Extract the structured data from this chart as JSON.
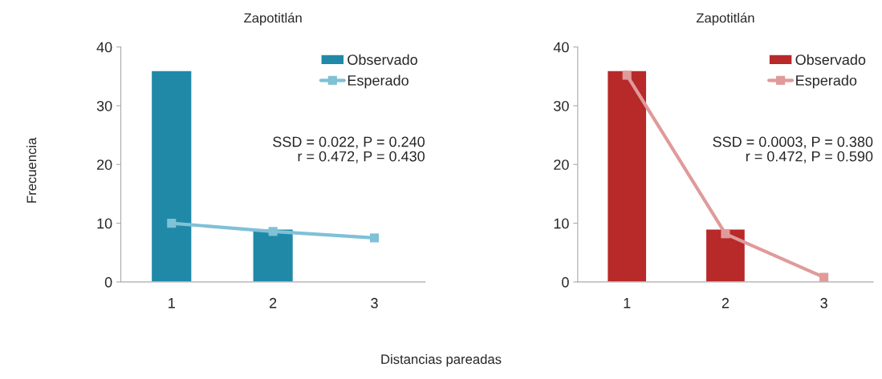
{
  "chart_data": [
    {
      "type": "bar",
      "title": "Zapotitlán",
      "xlabel": "Distancias pareadas",
      "ylabel": "Frecuencia",
      "categories": [
        "1",
        "2",
        "3"
      ],
      "ylim": [
        0,
        40
      ],
      "yticks": [
        0,
        10,
        20,
        30,
        40
      ],
      "grid": false,
      "legend": "top right",
      "marker": "square",
      "series": [
        {
          "name": "Observado",
          "color": "#2089a8",
          "values": [
            36,
            9,
            null
          ]
        },
        {
          "name": "Esperado",
          "type": "line",
          "color": "#7fc1d6",
          "values": [
            10,
            8.6,
            7.5
          ]
        }
      ],
      "annotations": [
        "SSD = 0.022, P = 0.240",
        "r = 0.472, P = 0.430"
      ]
    },
    {
      "type": "bar",
      "title": "Zapotitlán",
      "categories": [
        "1",
        "2",
        "3"
      ],
      "ylim": [
        0,
        40
      ],
      "yticks": [
        0,
        10,
        20,
        30,
        40
      ],
      "grid": false,
      "legend": "top right",
      "marker": "square",
      "series": [
        {
          "name": "Observado",
          "color": "#b8292a",
          "values": [
            36,
            9,
            null
          ]
        },
        {
          "name": "Esperado",
          "type": "line",
          "color": "#e09a9a",
          "values": [
            35.2,
            8.2,
            0.8
          ]
        }
      ],
      "annotations": [
        "SSD = 0.0003, P = 0.380",
        "r = 0.472, P = 0.590"
      ]
    }
  ]
}
